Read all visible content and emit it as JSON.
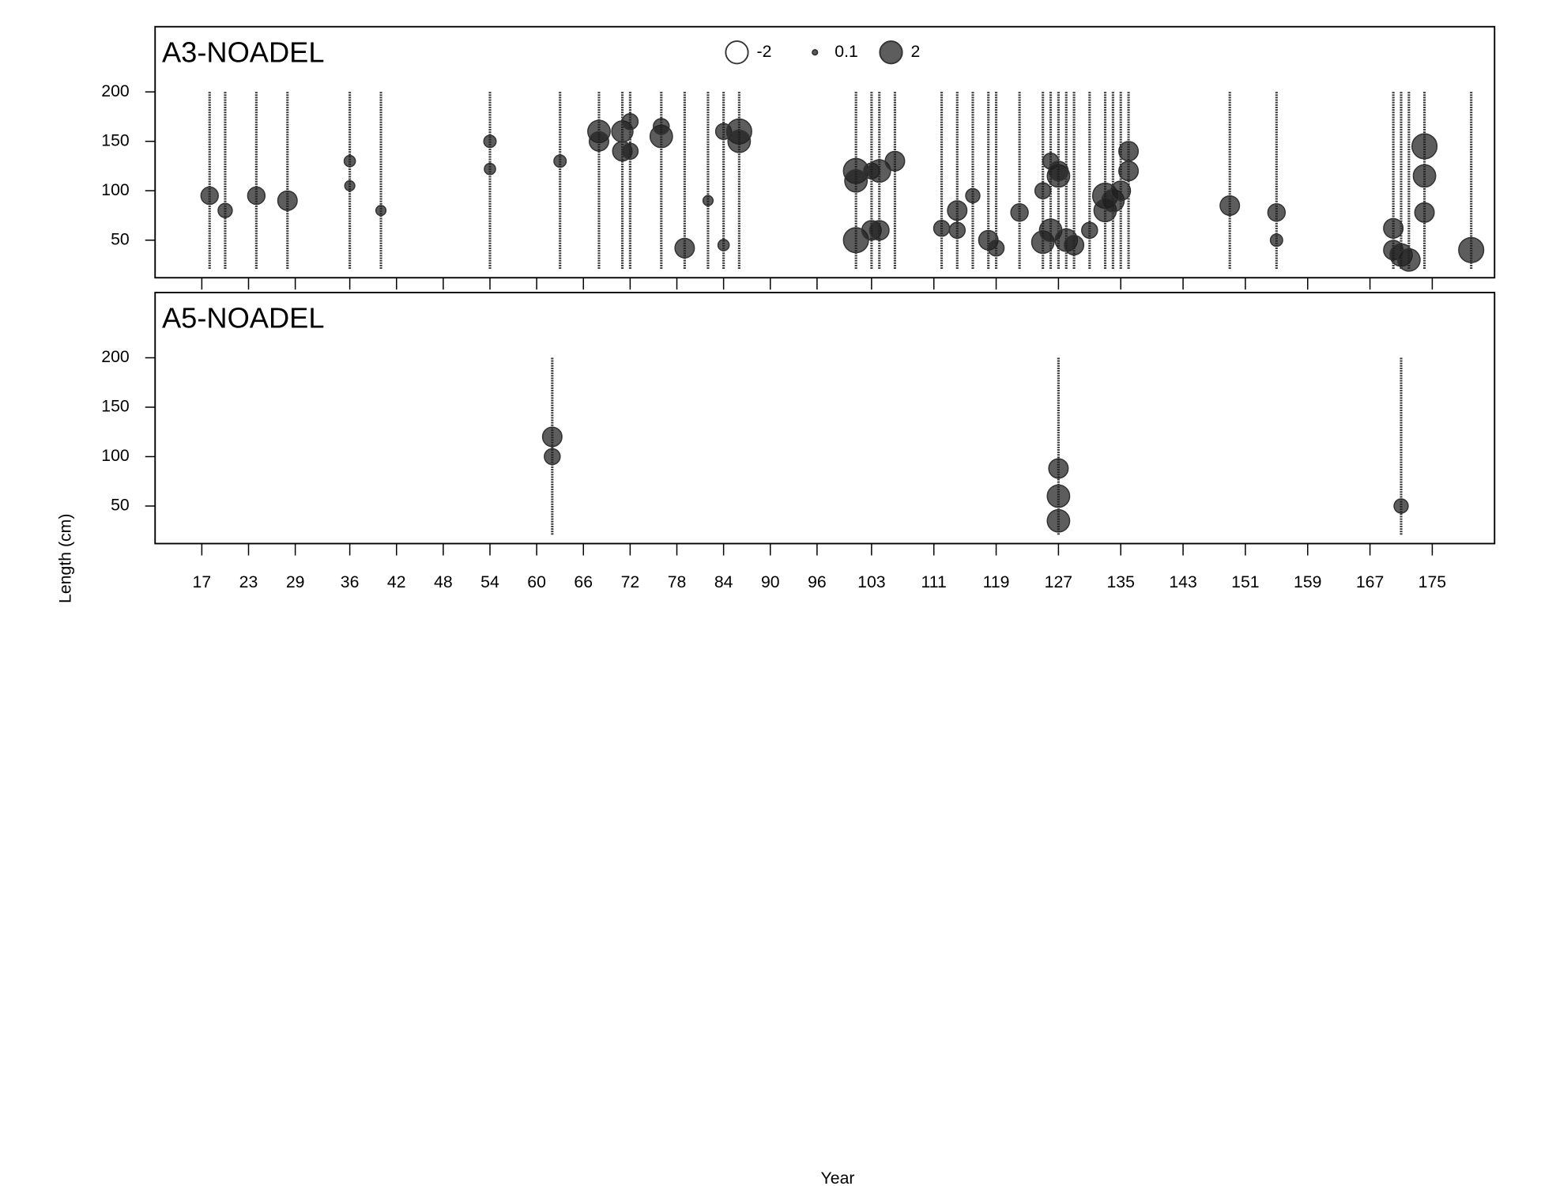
{
  "chart_data": {
    "type": "bubble",
    "xlabel": "Year",
    "ylabel": "Length (cm)",
    "xlim": [
      11,
      183
    ],
    "xticks": [
      17,
      23,
      29,
      36,
      42,
      48,
      54,
      60,
      66,
      72,
      78,
      84,
      90,
      96,
      103,
      111,
      119,
      127,
      135,
      143,
      151,
      159,
      167,
      175
    ],
    "ylim": [
      12,
      266
    ],
    "yticks": [
      50,
      100,
      150,
      200
    ],
    "length_range": [
      20,
      200
    ],
    "legend_values": [
      -2,
      0.1,
      2
    ],
    "panels": [
      {
        "title": "A3-NOADEL",
        "columns": [
          {
            "x": 18,
            "y": [
              95
            ],
            "values": [
              1.2
            ]
          },
          {
            "x": 20,
            "y": [
              80
            ],
            "values": [
              0.8
            ]
          },
          {
            "x": 24,
            "y": [
              95
            ],
            "values": [
              1.2
            ]
          },
          {
            "x": 28,
            "y": [
              90
            ],
            "values": [
              1.5
            ]
          },
          {
            "x": 36,
            "y": [
              130,
              105
            ],
            "values": [
              0.5,
              0.4
            ]
          },
          {
            "x": 40,
            "y": [
              80
            ],
            "values": [
              0.4
            ]
          },
          {
            "x": 54,
            "y": [
              150,
              122
            ],
            "values": [
              0.6,
              0.5
            ]
          },
          {
            "x": 63,
            "y": [
              130
            ],
            "values": [
              0.6
            ]
          },
          {
            "x": 68,
            "y": [
              160,
              150
            ],
            "values": [
              2,
              1.5
            ]
          },
          {
            "x": 71,
            "y": [
              140,
              160
            ],
            "values": [
              1.5,
              1.8
            ]
          },
          {
            "x": 72,
            "y": [
              170,
              140
            ],
            "values": [
              1,
              1
            ]
          },
          {
            "x": 76,
            "y": [
              155,
              165
            ],
            "values": [
              2,
              1
            ]
          },
          {
            "x": 79,
            "y": [
              42
            ],
            "values": [
              1.5
            ]
          },
          {
            "x": 82,
            "y": [
              90
            ],
            "values": [
              0.4
            ]
          },
          {
            "x": 84,
            "y": [
              160,
              45
            ],
            "values": [
              1,
              0.5
            ]
          },
          {
            "x": 86,
            "y": [
              160,
              150
            ],
            "values": [
              2.5,
              2
            ]
          },
          {
            "x": 101,
            "y": [
              120,
              110,
              50
            ],
            "values": [
              2.5,
              2,
              2.5
            ]
          },
          {
            "x": 103,
            "y": [
              60,
              120
            ],
            "values": [
              1.5,
              1
            ]
          },
          {
            "x": 104,
            "y": [
              120,
              60
            ],
            "values": [
              2,
              1.5
            ]
          },
          {
            "x": 106,
            "y": [
              130
            ],
            "values": [
              1.5
            ]
          },
          {
            "x": 112,
            "y": [
              62
            ],
            "values": [
              1
            ]
          },
          {
            "x": 114,
            "y": [
              80,
              60
            ],
            "values": [
              1.5,
              1
            ]
          },
          {
            "x": 116,
            "y": [
              95
            ],
            "values": [
              0.8
            ]
          },
          {
            "x": 118,
            "y": [
              50
            ],
            "values": [
              1.5
            ]
          },
          {
            "x": 119,
            "y": [
              42
            ],
            "values": [
              1
            ]
          },
          {
            "x": 122,
            "y": [
              78
            ],
            "values": [
              1.2
            ]
          },
          {
            "x": 125,
            "y": [
              48,
              100
            ],
            "values": [
              2,
              1
            ]
          },
          {
            "x": 126,
            "y": [
              60,
              130
            ],
            "values": [
              2,
              1
            ]
          },
          {
            "x": 127,
            "y": [
              115,
              120
            ],
            "values": [
              2,
              1.5
            ]
          },
          {
            "x": 128,
            "y": [
              50
            ],
            "values": [
              2
            ]
          },
          {
            "x": 129,
            "y": [
              45
            ],
            "values": [
              1.5
            ]
          },
          {
            "x": 131,
            "y": [
              60
            ],
            "values": [
              1
            ]
          },
          {
            "x": 133,
            "y": [
              95,
              80
            ],
            "values": [
              2.5,
              2
            ]
          },
          {
            "x": 134,
            "y": [
              90
            ],
            "values": [
              2
            ]
          },
          {
            "x": 135,
            "y": [
              100
            ],
            "values": [
              1.5
            ]
          },
          {
            "x": 136,
            "y": [
              140,
              120
            ],
            "values": [
              1.5,
              1.5
            ]
          },
          {
            "x": 149,
            "y": [
              85
            ],
            "values": [
              1.5
            ]
          },
          {
            "x": 155,
            "y": [
              78,
              50
            ],
            "values": [
              1.2,
              0.6
            ]
          },
          {
            "x": 170,
            "y": [
              62,
              40
            ],
            "values": [
              1.5,
              1.5
            ]
          },
          {
            "x": 171,
            "y": [
              35
            ],
            "values": [
              2
            ]
          },
          {
            "x": 172,
            "y": [
              30
            ],
            "values": [
              2
            ]
          },
          {
            "x": 174,
            "y": [
              145,
              115,
              78
            ],
            "values": [
              2.5,
              2,
              1.5
            ]
          },
          {
            "x": 180,
            "y": [
              40
            ],
            "values": [
              2.5
            ]
          }
        ]
      },
      {
        "title": "A5-NOADEL",
        "columns": [
          {
            "x": 62,
            "y": [
              120,
              100
            ],
            "values": [
              1.5,
              1
            ]
          },
          {
            "x": 127,
            "y": [
              88,
              60,
              35
            ],
            "values": [
              1.5,
              2,
              2
            ]
          },
          {
            "x": 171,
            "y": [
              50
            ],
            "values": [
              0.8
            ]
          }
        ]
      }
    ]
  }
}
